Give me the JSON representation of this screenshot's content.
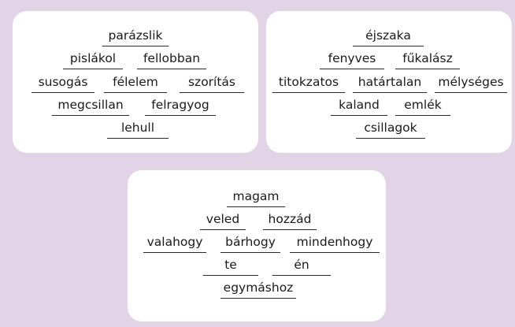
{
  "cards": [
    {
      "words": [
        "parázslik",
        "pislákol",
        "fellobban",
        "susogás",
        "félelem",
        "szorítás",
        "megcsillan",
        "felragyog",
        "lehull"
      ]
    },
    {
      "words": [
        "éjszaka",
        "fenyves",
        "fűkalász",
        "titokzatos",
        "határtalan",
        "mélységes",
        "kaland",
        "emlék",
        "csillagok"
      ]
    },
    {
      "words": [
        "magam",
        "veled",
        "hozzád",
        "valahogy",
        "bárhogy",
        "mindenhogy",
        "te",
        "én",
        "egymáshoz"
      ]
    }
  ],
  "colors": {
    "background": "#e3d3e7",
    "card": "#ffffff",
    "text": "#1a1a1a",
    "underline": "#2a2a2a"
  }
}
